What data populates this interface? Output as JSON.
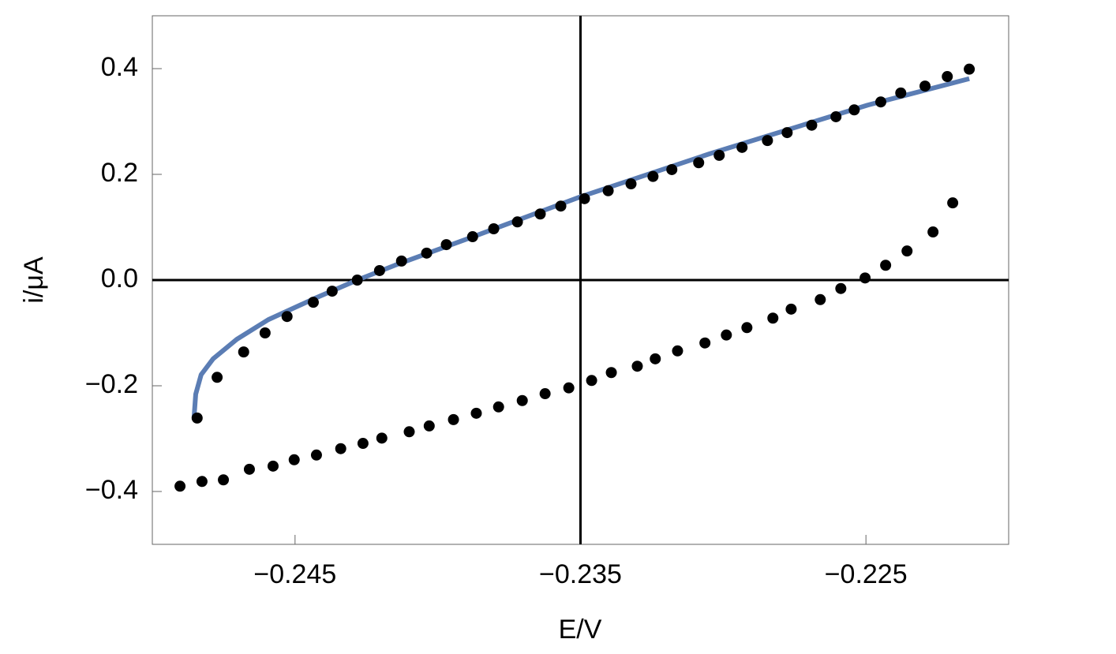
{
  "chart_data": {
    "type": "scatter",
    "xlabel": "E/V",
    "ylabel": "i/μA",
    "xlim": [
      -0.25,
      -0.22
    ],
    "ylim": [
      -0.5,
      0.5
    ],
    "xticks": [
      {
        "value": -0.245,
        "label": "−0.245"
      },
      {
        "value": -0.235,
        "label": "−0.235"
      },
      {
        "value": -0.225,
        "label": "−0.225"
      }
    ],
    "yticks": [
      {
        "value": -0.4,
        "label": "−0.4"
      },
      {
        "value": -0.2,
        "label": "−0.2"
      },
      {
        "value": 0,
        "label": "0.0"
      },
      0.2,
      0.4
    ],
    "axes_origin": [
      -0.235,
      0
    ],
    "series": [
      {
        "type": "line",
        "color": "#5b7db4",
        "x": [
          -0.24854,
          -0.24848,
          -0.24829,
          -0.24787,
          -0.24704,
          -0.24594,
          -0.24428,
          -0.24282,
          -0.2415,
          -0.23876,
          -0.23503,
          -0.23047,
          -0.22494,
          -0.22138
        ],
        "values": [
          -0.261,
          -0.216,
          -0.179,
          -0.149,
          -0.112,
          -0.075,
          -0.034,
          0.0,
          0.028,
          0.082,
          0.157,
          0.239,
          0.331,
          0.381
        ]
      },
      {
        "type": "scatter",
        "color": "#000000",
        "x": [
          -0.24843,
          -0.24773,
          -0.2468,
          -0.24605,
          -0.24528,
          -0.24436,
          -0.2437,
          -0.24282,
          -0.24204,
          -0.24127,
          -0.24039,
          -0.2397,
          -0.23878,
          -0.23804,
          -0.23721,
          -0.23641,
          -0.23569,
          -0.23486,
          -0.23403,
          -0.23323,
          -0.23246,
          -0.2318,
          -0.23086,
          -0.23014,
          -0.22934,
          -0.22845,
          -0.22776,
          -0.2269,
          -0.22605,
          -0.22541,
          -0.22448,
          -0.22378,
          -0.22293,
          -0.22215,
          -0.22138
        ],
        "values": [
          -0.261,
          -0.184,
          -0.136,
          -0.1,
          -0.069,
          -0.042,
          -0.021,
          0.0,
          0.018,
          0.036,
          0.051,
          0.067,
          0.082,
          0.097,
          0.11,
          0.125,
          0.14,
          0.154,
          0.169,
          0.182,
          0.196,
          0.209,
          0.222,
          0.236,
          0.251,
          0.264,
          0.279,
          0.293,
          0.309,
          0.322,
          0.337,
          0.354,
          0.367,
          0.385,
          0.399
        ]
      },
      {
        "type": "scatter",
        "color": "#000000",
        "x": [
          -0.24903,
          -0.24826,
          -0.24751,
          -0.2466,
          -0.24577,
          -0.24503,
          -0.24425,
          -0.2434,
          -0.24262,
          -0.24196,
          -0.241,
          -0.2403,
          -0.23945,
          -0.23865,
          -0.23787,
          -0.23704,
          -0.23624,
          -0.23541,
          -0.23461,
          -0.23392,
          -0.23301,
          -0.23238,
          -0.2316,
          -0.23064,
          -0.22989,
          -0.22917,
          -0.22826,
          -0.22762,
          -0.2266,
          -0.22588,
          -0.22503,
          -0.22431,
          -0.22356,
          -0.22265,
          -0.22196
        ],
        "values": [
          -0.39,
          -0.381,
          -0.378,
          -0.358,
          -0.352,
          -0.34,
          -0.331,
          -0.319,
          -0.309,
          -0.299,
          -0.287,
          -0.276,
          -0.264,
          -0.252,
          -0.24,
          -0.228,
          -0.215,
          -0.204,
          -0.19,
          -0.175,
          -0.163,
          -0.149,
          -0.134,
          -0.119,
          -0.104,
          -0.09,
          -0.072,
          -0.055,
          -0.037,
          -0.016,
          0.004,
          0.028,
          0.055,
          0.091,
          0.146
        ]
      }
    ]
  }
}
